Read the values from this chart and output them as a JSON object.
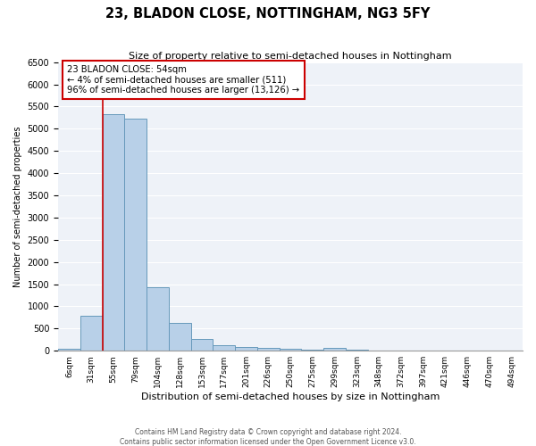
{
  "title": "23, BLADON CLOSE, NOTTINGHAM, NG3 5FY",
  "subtitle": "Size of property relative to semi-detached houses in Nottingham",
  "xlabel": "Distribution of semi-detached houses by size in Nottingham",
  "ylabel": "Number of semi-detached properties",
  "bar_labels": [
    "6sqm",
    "31sqm",
    "55sqm",
    "79sqm",
    "104sqm",
    "128sqm",
    "153sqm",
    "177sqm",
    "201sqm",
    "226sqm",
    "250sqm",
    "275sqm",
    "299sqm",
    "323sqm",
    "348sqm",
    "372sqm",
    "397sqm",
    "421sqm",
    "446sqm",
    "470sqm",
    "494sqm"
  ],
  "bar_values": [
    50,
    780,
    5330,
    5230,
    1430,
    625,
    265,
    130,
    80,
    55,
    40,
    30,
    70,
    15,
    0,
    0,
    0,
    0,
    0,
    0,
    0
  ],
  "bar_color": "#b8d0e8",
  "bar_edge_color": "#6699bb",
  "ylim": [
    0,
    6500
  ],
  "yticks": [
    0,
    500,
    1000,
    1500,
    2000,
    2500,
    3000,
    3500,
    4000,
    4500,
    5000,
    5500,
    6000,
    6500
  ],
  "property_line_color": "#cc0000",
  "annotation_title": "23 BLADON CLOSE: 54sqm",
  "annotation_line1": "← 4% of semi-detached houses are smaller (511)",
  "annotation_line2": "96% of semi-detached houses are larger (13,126) →",
  "annotation_box_color": "#cc0000",
  "footer1": "Contains HM Land Registry data © Crown copyright and database right 2024.",
  "footer2": "Contains public sector information licensed under the Open Government Licence v3.0.",
  "background_color": "#ffffff",
  "plot_background": "#eef2f8"
}
